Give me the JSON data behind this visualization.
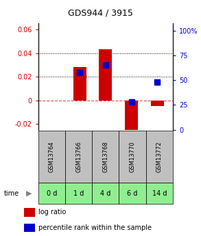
{
  "title": "GDS944 / 3915",
  "samples": [
    "GSM13764",
    "GSM13766",
    "GSM13768",
    "GSM13770",
    "GSM13772"
  ],
  "time_labels": [
    "0 d",
    "1 d",
    "4 d",
    "6 d",
    "14 d"
  ],
  "log_ratio": [
    0.0,
    0.028,
    0.043,
    -0.028,
    -0.005
  ],
  "percentile_rank_pct": [
    null,
    58,
    65,
    28,
    48
  ],
  "left_ylim": [
    -0.025,
    0.065
  ],
  "right_ylim": [
    0,
    107
  ],
  "left_yticks": [
    -0.02,
    0.0,
    0.02,
    0.04,
    0.06
  ],
  "right_yticks": [
    0,
    25,
    50,
    75,
    100
  ],
  "left_tick_labels": [
    "-0.02",
    "0",
    "0.02",
    "0.04",
    "0.06"
  ],
  "right_tick_labels": [
    "0",
    "25",
    "50",
    "75",
    "100%"
  ],
  "bar_color": "#cc0000",
  "dot_color": "#0000cc",
  "zero_line_color": "#cc0000",
  "grid_color": "#000000",
  "sample_box_color": "#c0c0c0",
  "time_box_color": "#90ee90",
  "bar_width": 0.5,
  "dot_size": 40,
  "figsize": [
    2.93,
    3.45
  ],
  "dpi": 100
}
